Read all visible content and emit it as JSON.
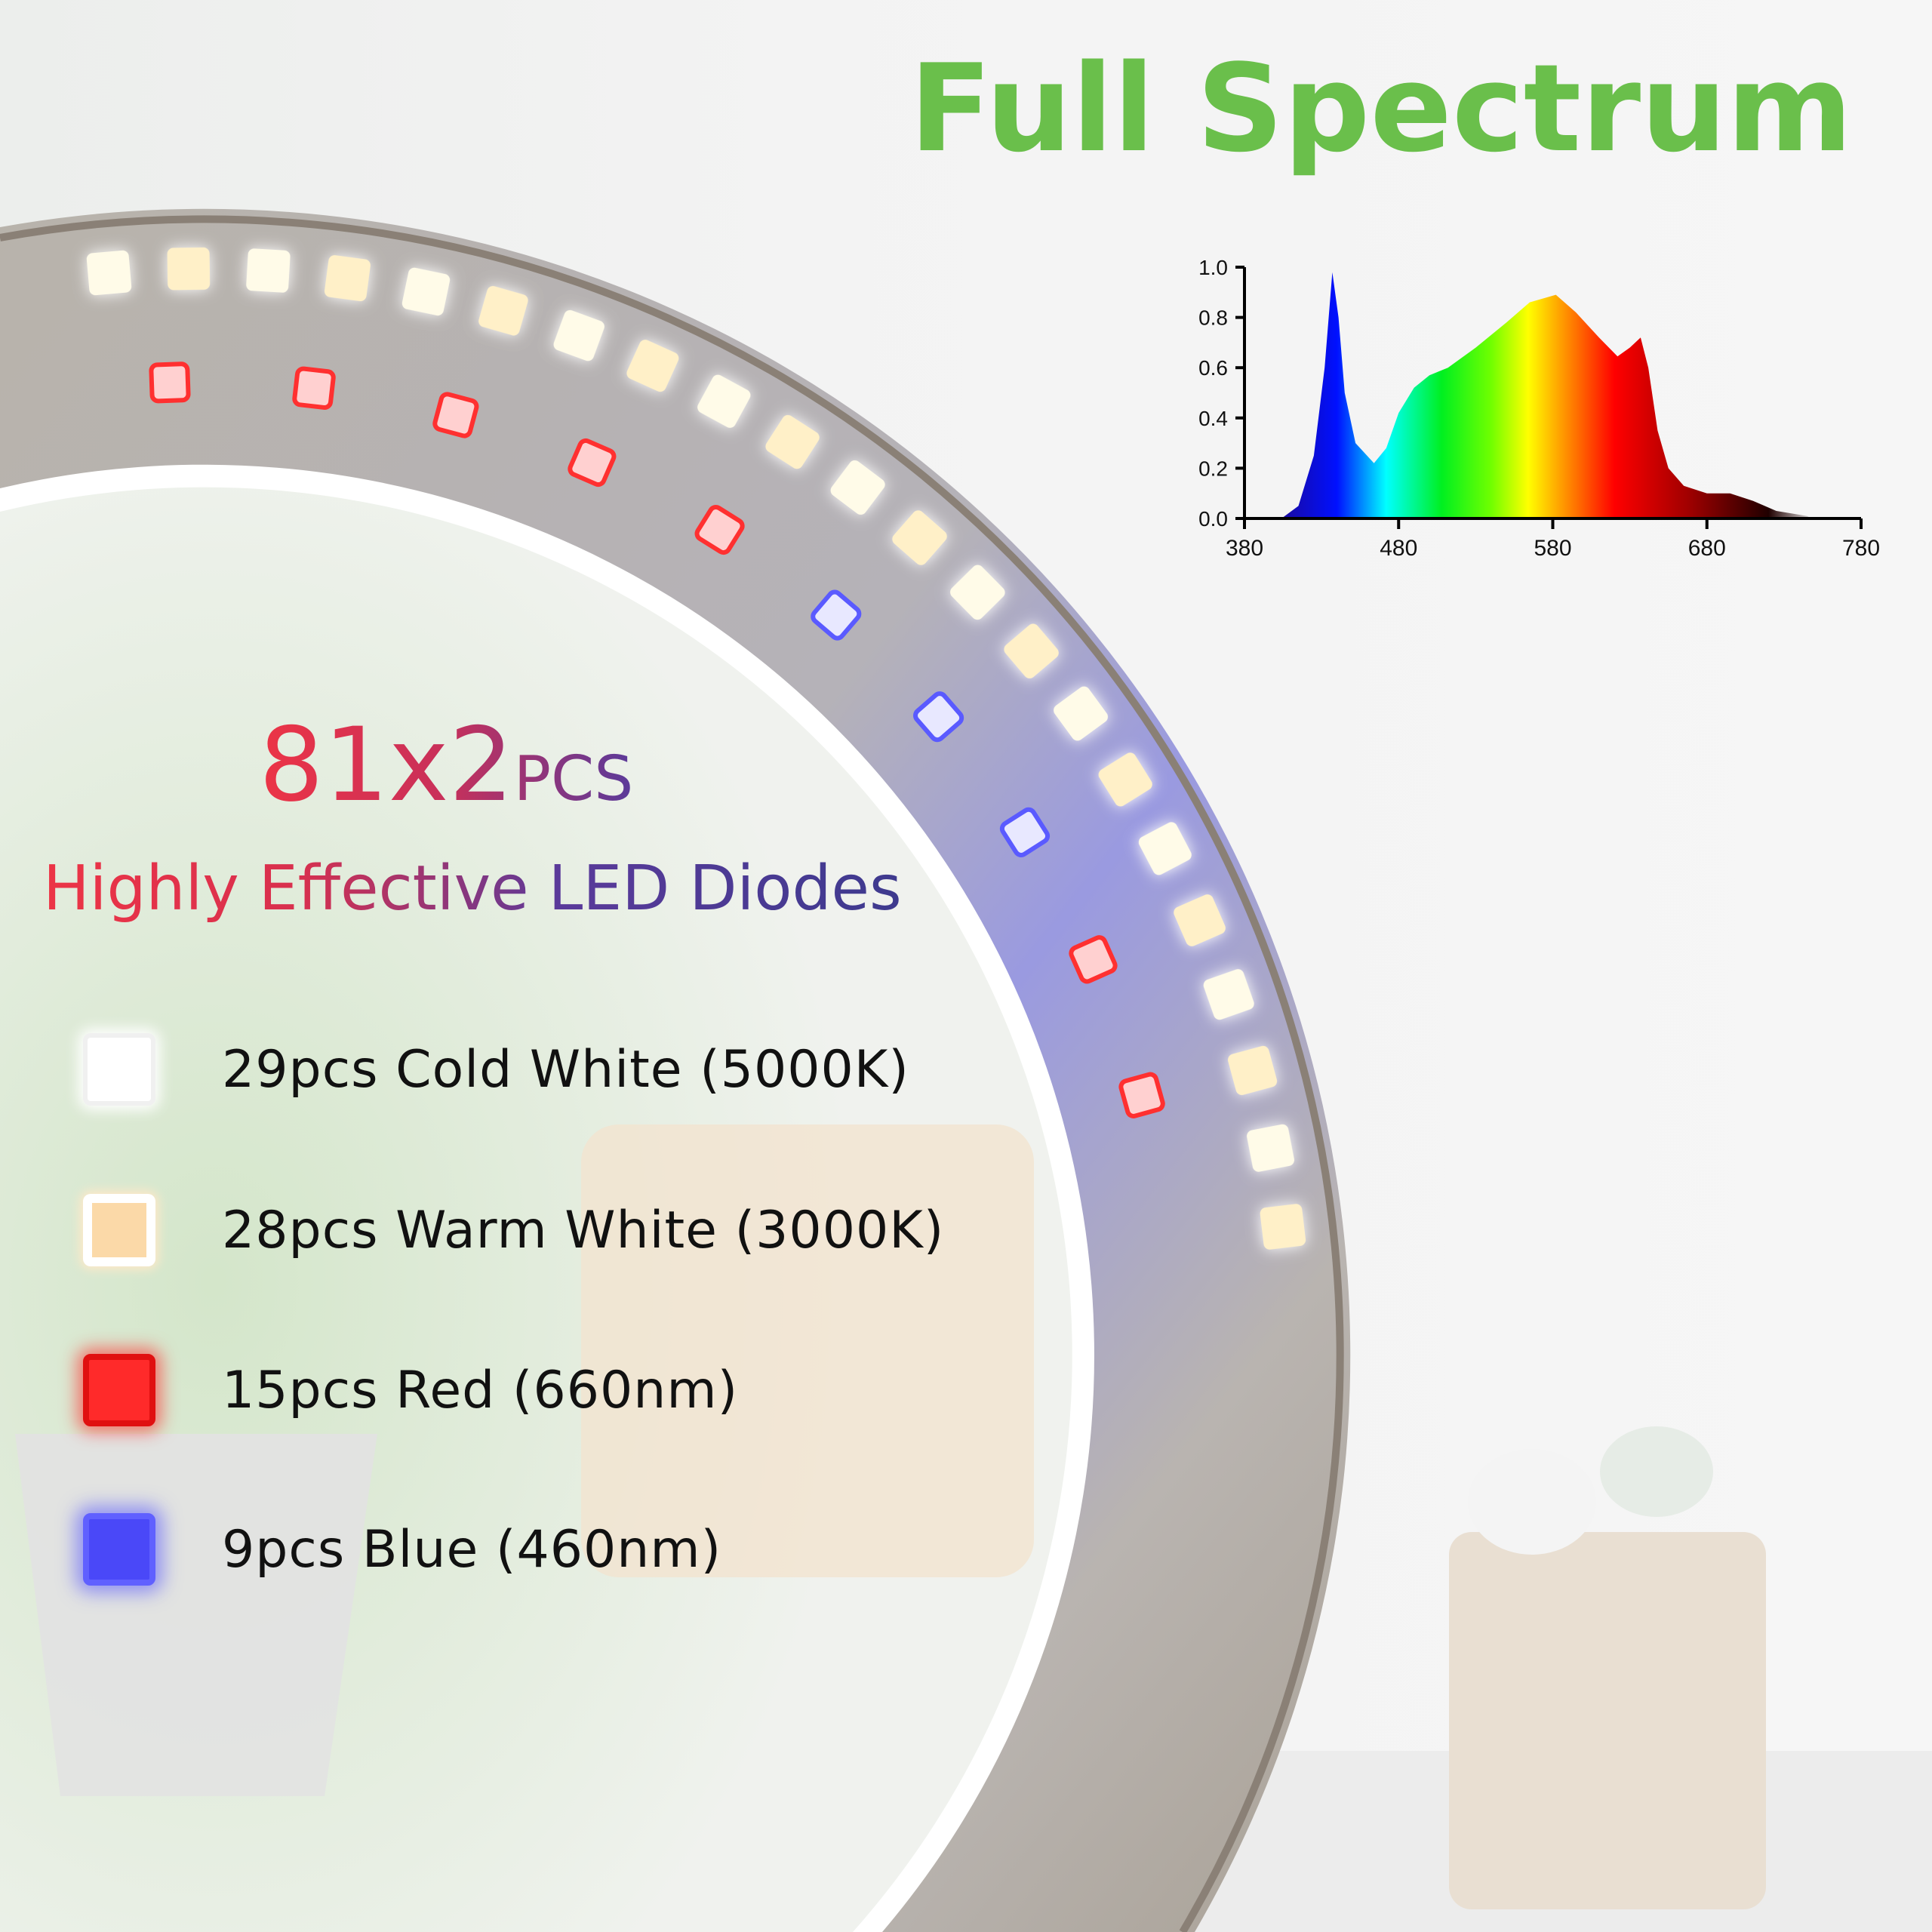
{
  "title": "Full Spectrum",
  "headline": {
    "count": "81x2",
    "unit": "PCS"
  },
  "subheading": "Highly Effective LED Diodes",
  "led_types": [
    {
      "label": "29pcs Cold White  (5000K)",
      "color": "#ffffff",
      "icon": "cold-white-led-chip-icon"
    },
    {
      "label": "28pcs Warm White  (3000K)",
      "color": "#fbd9a8",
      "icon": "warm-white-led-chip-icon"
    },
    {
      "label": "15pcs Red  (660nm)",
      "color": "#ff2020",
      "icon": "red-led-chip-icon"
    },
    {
      "label": "9pcs Blue  (460nm)",
      "color": "#4a48f8",
      "icon": "blue-led-chip-icon"
    }
  ],
  "colors": {
    "title": "#6abf4b",
    "gradient_start": "#ec3446",
    "gradient_end": "#3e3a8e"
  },
  "chart_data": {
    "type": "area",
    "title": "",
    "xlabel": "",
    "ylabel": "",
    "xlim": [
      380,
      780
    ],
    "ylim": [
      0,
      1.0
    ],
    "x_ticks": [
      "380",
      "480",
      "580",
      "680",
      "780"
    ],
    "y_ticks": [
      "0.0",
      "0.2",
      "0.4",
      "0.6",
      "0.8",
      "1.0"
    ],
    "grid": false,
    "fill": "visible-spectrum gradient",
    "x": [
      404,
      415,
      425,
      432,
      437,
      441,
      445,
      452,
      464,
      472,
      480,
      490,
      500,
      512,
      530,
      550,
      565,
      582,
      595,
      610,
      622,
      630,
      637,
      642,
      648,
      655,
      665,
      680,
      695,
      710,
      725,
      745,
      748
    ],
    "y": [
      0,
      0.05,
      0.25,
      0.6,
      0.98,
      0.8,
      0.5,
      0.3,
      0.22,
      0.28,
      0.42,
      0.52,
      0.57,
      0.6,
      0.68,
      0.78,
      0.86,
      0.89,
      0.82,
      0.72,
      0.645,
      0.68,
      0.72,
      0.6,
      0.35,
      0.2,
      0.13,
      0.1,
      0.1,
      0.07,
      0.03,
      0.01,
      0
    ]
  }
}
